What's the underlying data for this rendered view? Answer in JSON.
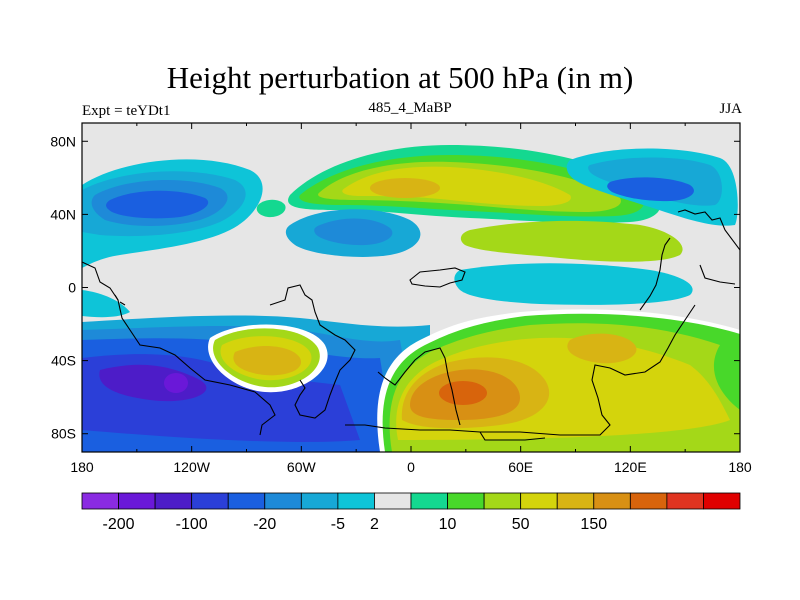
{
  "chart_data": {
    "type": "heatmap",
    "title": "Height perturbation at 500 hPa (in m)",
    "left_label": "Expt = teYDt1",
    "center_label": "485_4_MaBP",
    "right_label": "JJA",
    "x_range": [
      -180,
      180
    ],
    "y_range": [
      -90,
      90
    ],
    "x_ticks": [
      {
        "value": -180,
        "label": "180"
      },
      {
        "value": -120,
        "label": "120W"
      },
      {
        "value": -60,
        "label": "60W"
      },
      {
        "value": 0,
        "label": "0"
      },
      {
        "value": 60,
        "label": "60E"
      },
      {
        "value": 120,
        "label": "120E"
      },
      {
        "value": 180,
        "label": "180"
      }
    ],
    "y_ticks": [
      {
        "value": 80,
        "label": "80N"
      },
      {
        "value": 40,
        "label": "40N"
      },
      {
        "value": 0,
        "label": "0"
      },
      {
        "value": -40,
        "label": "40S"
      },
      {
        "value": -80,
        "label": "80S"
      }
    ],
    "colorbar": {
      "colors": [
        "#8a2be2",
        "#6a18d8",
        "#4d1cc8",
        "#2b3fd8",
        "#1a5fe0",
        "#1e8ad8",
        "#17a8d6",
        "#0ec4d8",
        "#e6e6e6",
        "#14d890",
        "#48d82a",
        "#a4d818",
        "#d4d40c",
        "#d8b414",
        "#d89014",
        "#d8640c",
        "#e03420",
        "#e00000"
      ],
      "labels": [
        "-200",
        "-100",
        "-20",
        "-5",
        "2",
        "10",
        "50",
        "150"
      ],
      "label_after_box": [
        1,
        3,
        5,
        7,
        8,
        10,
        12,
        14
      ]
    },
    "regions": [
      {
        "name": "background-plateau",
        "value": 2,
        "lon": [
          -180,
          180
        ],
        "lat": [
          -90,
          90
        ]
      },
      {
        "name": "n-pacific-high",
        "value": -10,
        "lon": [
          -175,
          -95
        ],
        "lat": [
          20,
          78
        ]
      },
      {
        "name": "n-pacific-core",
        "value": -40,
        "lon": [
          -165,
          -115
        ],
        "lat": [
          32,
          58
        ]
      },
      {
        "name": "n-atlantic-ridge",
        "value": 20,
        "lon": [
          -30,
          95
        ],
        "lat": [
          30,
          80
        ]
      },
      {
        "name": "n-atlantic-core",
        "value": 40,
        "lon": [
          -15,
          45
        ],
        "lat": [
          42,
          68
        ]
      },
      {
        "name": "n-asia-low",
        "value": -25,
        "lon": [
          100,
          165
        ],
        "lat": [
          40,
          75
        ]
      },
      {
        "name": "s-hemisphere-low",
        "value": -60,
        "lon": [
          -180,
          -5
        ],
        "lat": [
          -85,
          -25
        ]
      },
      {
        "name": "s-pacific-core",
        "value": -120,
        "lon": [
          -140,
          -115
        ],
        "lat": [
          -65,
          -45
        ]
      },
      {
        "name": "s-atlantic-high",
        "value": 40,
        "lon": [
          -35,
          170
        ],
        "lat": [
          -85,
          -15
        ]
      },
      {
        "name": "s-atlantic-core",
        "value": 120,
        "lon": [
          5,
          55
        ],
        "lat": [
          -70,
          -45
        ]
      },
      {
        "name": "s-pacific-high",
        "value": 60,
        "lon": [
          -110,
          -65
        ],
        "lat": [
          -55,
          -25
        ]
      }
    ]
  }
}
